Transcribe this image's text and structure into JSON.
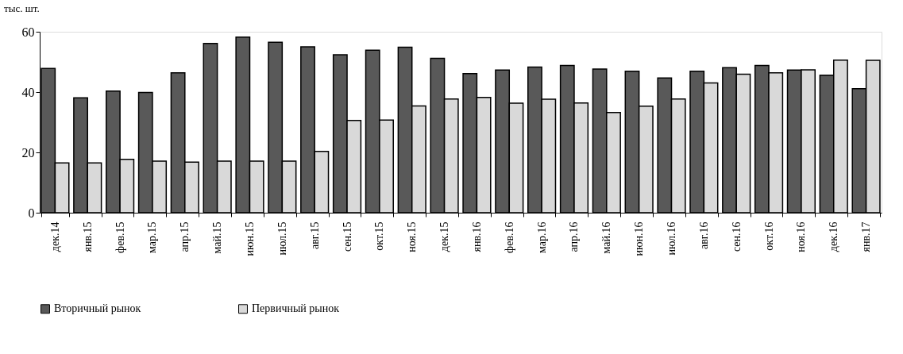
{
  "chart_data": {
    "type": "bar",
    "ylabel": "тыс. шт.",
    "categories": [
      "дек.14",
      "янв.15",
      "фев.15",
      "мар.15",
      "апр.15",
      "май.15",
      "июн.15",
      "июл.15",
      "авг.15",
      "сен.15",
      "окт.15",
      "ноя.15",
      "дек.15",
      "янв.16",
      "фев.16",
      "мар.16",
      "апр.16",
      "май.16",
      "июн.16",
      "июл.16",
      "авг.16",
      "сен.16",
      "окт.16",
      "ноя.16",
      "дек.16",
      "янв.17"
    ],
    "series": [
      {
        "name": "Вторичный рынок",
        "color": "#595959",
        "values": [
          47.8,
          38.1,
          40.3,
          39.9,
          46.4,
          56.1,
          58.2,
          56.5,
          55.0,
          52.4,
          53.9,
          54.9,
          51.2,
          46.1,
          47.3,
          48.3,
          48.8,
          47.6,
          46.9,
          44.7,
          46.9,
          48.1,
          48.8,
          47.3,
          45.6,
          41.1
        ]
      },
      {
        "name": "Первичный рынок",
        "color": "#d9d9d9",
        "values": [
          16.5,
          16.5,
          17.7,
          17.1,
          16.8,
          17.1,
          17.1,
          17.1,
          20.3,
          30.6,
          30.7,
          35.4,
          37.7,
          38.2,
          36.3,
          37.6,
          36.4,
          33.2,
          35.3,
          37.7,
          43.0,
          45.9,
          46.4,
          47.4,
          50.6,
          50.5
        ]
      }
    ],
    "ylim": [
      0,
      60
    ],
    "yticks": [
      0,
      20,
      40,
      60
    ],
    "grid": false,
    "legend": "bottom"
  }
}
